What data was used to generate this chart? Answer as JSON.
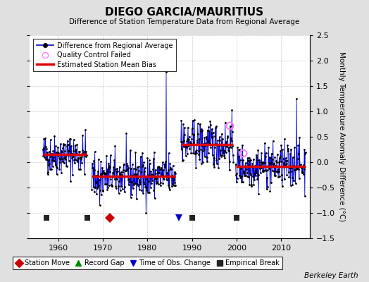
{
  "title": "DIEGO GARCIA/MAURITIUS",
  "subtitle": "Difference of Station Temperature Data from Regional Average",
  "ylabel": "Monthly Temperature Anomaly Difference (°C)",
  "background_color": "#e0e0e0",
  "plot_bg_color": "#ffffff",
  "xlim": [
    1953.5,
    2016.5
  ],
  "ylim": [
    -1.5,
    2.5
  ],
  "yticks": [
    -1.5,
    -1.0,
    -0.5,
    0.0,
    0.5,
    1.0,
    1.5,
    2.0,
    2.5
  ],
  "xticks": [
    1960,
    1970,
    1980,
    1990,
    2000,
    2010
  ],
  "segments": [
    {
      "x_start": 1956.5,
      "x_end": 1966.3,
      "bias": 0.15,
      "noise": 0.2
    },
    {
      "x_start": 1967.5,
      "x_end": 1986.3,
      "bias": -0.28,
      "noise": 0.22
    },
    {
      "x_start": 1987.5,
      "x_end": 1999.3,
      "bias": 0.35,
      "noise": 0.22
    },
    {
      "x_start": 1999.8,
      "x_end": 2015.5,
      "bias": -0.08,
      "noise": 0.22
    }
  ],
  "outliers": [
    {
      "t": 1984.2,
      "v": 1.78
    },
    {
      "t": 2013.5,
      "v": 1.25
    },
    {
      "t": 1969.3,
      "v": -0.85
    },
    {
      "t": 1987.6,
      "v": 0.82
    },
    {
      "t": 1988.0,
      "v": 0.75
    }
  ],
  "qc_points": [
    {
      "t": 1998.5,
      "v": 0.72
    },
    {
      "t": 2001.5,
      "v": 0.18
    }
  ],
  "marker_events": {
    "empirical_breaks": [
      1957.3,
      1966.5,
      1990.0,
      2000.0
    ],
    "station_moves": [
      1971.5
    ],
    "record_gaps": [],
    "obs_changes": [
      1987.0
    ]
  },
  "marker_y": -1.1,
  "legend_main": {
    "line_label": "Difference from Regional Average",
    "qc_label": "Quality Control Failed",
    "bias_label": "Estimated Station Mean Bias"
  },
  "legend_bottom": {
    "station_move": "Station Move",
    "record_gap": "Record Gap",
    "obs_change": "Time of Obs. Change",
    "empirical_break": "Empirical Break"
  },
  "berkeley_earth_text": "Berkeley Earth",
  "line_color": "#0000cc",
  "bias_color": "#dd0000",
  "dot_color": "#000000",
  "qc_color": "#ff80ff",
  "empirical_break_color": "#222222",
  "station_move_color": "#cc0000",
  "record_gap_color": "#008800",
  "obs_change_color": "#0000cc",
  "grid_color": "#cccccc",
  "seed": 42
}
